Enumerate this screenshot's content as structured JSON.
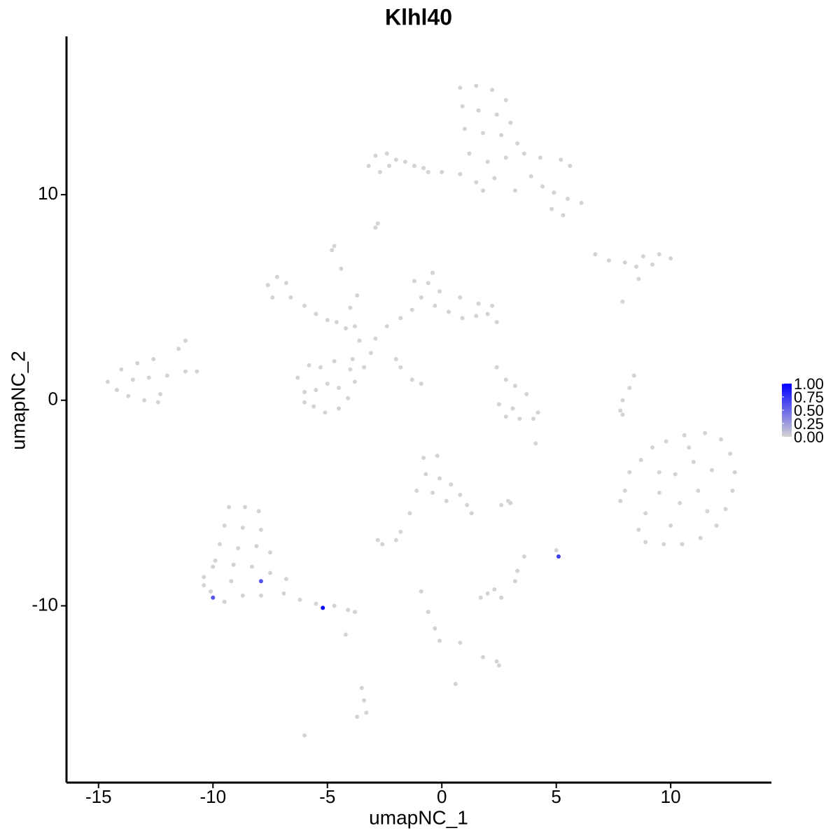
{
  "chart_data": {
    "type": "scatter",
    "title": "Klhl40",
    "xlabel": "umapNC_1",
    "ylabel": "umapNC_2",
    "x": [
      0.8,
      1.5,
      2.2,
      2.8,
      0.9,
      1.6,
      2.4,
      3.0,
      1.0,
      1.8,
      2.6,
      3.3,
      1.2,
      2.0,
      2.8,
      3.6,
      4.3,
      5.2,
      5.6,
      0.8,
      1.5,
      3.9,
      4.4,
      4.9,
      5.5,
      6.1,
      4.8,
      5.3,
      3.2,
      0.0,
      -0.6,
      2.3,
      1.8,
      -3.2,
      -2.9,
      -2.4,
      -2.0,
      -1.6,
      -1.2,
      -0.8,
      -2.7,
      -2.3,
      -2.8,
      -2.9,
      6.7,
      7.3,
      8.0,
      8.8,
      9.5,
      10.0,
      9.2,
      8.5,
      8.6,
      7.9,
      -7.6,
      -7.2,
      -6.8,
      -7.4,
      -6.6,
      -6.0,
      -5.5,
      -5.0,
      -4.6,
      -4.2,
      -4.7,
      -4.8,
      -4.0,
      -3.8,
      -3.6,
      -3.9,
      -3.4,
      -3.1,
      -2.9,
      -2.4,
      -1.8,
      -1.3,
      -0.9,
      -1.2,
      -0.6,
      -0.3,
      0.3,
      0.9,
      1.5,
      2.0,
      2.4,
      2.2,
      1.6,
      0.8,
      -0.4,
      -0.1,
      -2.0,
      -1.3,
      -1.8,
      -0.9,
      -4.4,
      -3.7,
      -6.3,
      -6.0,
      -5.6,
      -5.1,
      -4.5,
      -4.1,
      -3.8,
      -4.0,
      -4.7,
      -5.3,
      -5.8,
      -5.0,
      -4.5,
      -5.5,
      -6.0,
      -14.6,
      -14.2,
      -13.7,
      -13.0,
      -12.3,
      -13.5,
      -12.8,
      -12.0,
      -11.2,
      -10.7,
      -13.3,
      -12.6,
      -11.5,
      -11.2,
      -14.0,
      -12.4,
      2.8,
      3.2,
      3.1,
      2.5,
      2.8,
      3.4,
      4.0,
      4.2,
      3.7,
      2.4,
      8.4,
      8.2,
      7.9,
      7.8,
      7.9,
      8.2,
      8.7,
      9.2,
      9.8,
      10.6,
      11.5,
      12.2,
      12.6,
      12.8,
      12.7,
      12.4,
      12.0,
      11.3,
      10.5,
      9.7,
      8.9,
      8.6,
      8.9,
      9.5,
      10.2,
      11.0,
      11.8,
      11.2,
      10.4,
      11.6,
      10.0,
      9.5,
      8.0,
      7.8,
      10.8,
      -0.8,
      -0.2,
      -0.7,
      -0.1,
      0.4,
      -0.4,
      0.2,
      0.8,
      1.1,
      1.3,
      -1.1,
      -1.4,
      -1.8,
      -2.6,
      -2.0,
      -2.8,
      2.6,
      3.0,
      -9.3,
      -8.6,
      -8.0,
      -9.5,
      -8.7,
      -7.9,
      -9.7,
      -8.9,
      -8.1,
      -7.5,
      -9.9,
      -9.1,
      -8.3,
      -7.5,
      -6.8,
      -10.4,
      -10.1,
      -9.5,
      -8.7,
      -7.9,
      -6.9,
      -6.2,
      -5.5,
      -4.7,
      -4.1,
      -3.8,
      -10.4,
      -9.2,
      -4.2,
      -10.0,
      3.6,
      5.0,
      5.1,
      3.2,
      3.3,
      2.0,
      2.6,
      1.7,
      2.3,
      -0.9,
      -0.6,
      -0.3,
      -0.1,
      0.8,
      1.8,
      2.4,
      2.5,
      -3.5,
      -3.4,
      -3.3,
      -3.7,
      0.6,
      -6.0,
      4.1,
      2.9,
      -10.0,
      -7.9,
      -5.2,
      5.1
    ],
    "y": [
      15.2,
      15.3,
      15.1,
      14.6,
      14.3,
      14.1,
      13.9,
      13.5,
      13.2,
      13.0,
      12.9,
      12.5,
      12.0,
      11.6,
      11.8,
      12.0,
      11.8,
      11.7,
      11.4,
      11.0,
      10.6,
      10.9,
      10.4,
      10.1,
      9.8,
      9.6,
      9.3,
      9.0,
      10.2,
      11.1,
      11.1,
      10.8,
      10.2,
      11.4,
      11.9,
      12.0,
      11.7,
      11.6,
      11.4,
      11.3,
      11.1,
      11.4,
      8.6,
      8.4,
      7.1,
      6.8,
      6.7,
      7.0,
      7.1,
      6.9,
      6.6,
      6.5,
      5.9,
      4.8,
      5.6,
      6.0,
      5.7,
      5.0,
      5.0,
      4.6,
      4.2,
      3.9,
      3.8,
      3.5,
      7.5,
      7.3,
      4.5,
      3.6,
      2.9,
      2.0,
      1.6,
      2.3,
      3.0,
      3.6,
      4.0,
      4.4,
      5.0,
      5.8,
      5.7,
      4.6,
      4.3,
      4.0,
      4.1,
      4.2,
      3.8,
      4.6,
      4.7,
      5.0,
      6.2,
      5.3,
      2.0,
      1.0,
      1.6,
      0.8,
      6.4,
      5.1,
      1.1,
      0.4,
      -0.3,
      -0.6,
      -0.4,
      0.1,
      0.9,
      1.5,
      1.9,
      1.6,
      1.7,
      0.8,
      0.6,
      0.5,
      -0.1,
      0.9,
      0.5,
      0.2,
      0.0,
      0.3,
      1.0,
      1.1,
      1.2,
      1.4,
      1.4,
      1.8,
      2.0,
      2.5,
      2.9,
      1.5,
      -0.1,
      1.0,
      0.7,
      -0.4,
      -0.2,
      -0.8,
      -0.9,
      -0.9,
      -0.6,
      0.3,
      1.6,
      1.2,
      0.6,
      0.0,
      -0.5,
      -0.7,
      -3.5,
      -2.9,
      -2.3,
      -2.0,
      -1.7,
      -1.6,
      -1.9,
      -2.6,
      -3.5,
      -4.4,
      -5.3,
      -6.1,
      -6.7,
      -7.0,
      -7.0,
      -6.9,
      -6.3,
      -5.5,
      -4.5,
      -3.6,
      -3.0,
      -3.4,
      -4.4,
      -5.0,
      -5.4,
      -6.1,
      -3.5,
      -4.4,
      -4.9,
      -2.3,
      -2.8,
      -2.7,
      -3.6,
      -3.8,
      -4.1,
      -4.5,
      -4.9,
      -4.6,
      -5.1,
      -5.5,
      -4.4,
      -5.5,
      -6.4,
      -7.0,
      -6.8,
      -6.8,
      -5.1,
      -5.0,
      -5.2,
      -5.2,
      -5.4,
      -6.1,
      -6.2,
      -6.3,
      -7.0,
      -7.2,
      -7.1,
      -7.4,
      -7.8,
      -8.0,
      -8.1,
      -8.4,
      -8.7,
      -8.6,
      -9.3,
      -9.8,
      -9.5,
      -9.5,
      -9.4,
      -9.7,
      -9.9,
      -10.0,
      -10.2,
      -10.3,
      -9.0,
      -8.8,
      -11.4,
      -8.1,
      -7.6,
      -7.3,
      -7.6,
      -8.8,
      -8.3,
      -9.4,
      -9.6,
      -9.6,
      -9.2,
      -9.3,
      -10.3,
      -11.1,
      -11.7,
      -11.8,
      -12.5,
      -12.7,
      -12.9,
      -14.0,
      -14.6,
      -15.2,
      -15.4,
      -13.8,
      -16.3,
      -2.1,
      -4.9,
      -9.6,
      -8.8,
      -10.1,
      -7.6
    ],
    "values": [
      0,
      0,
      0,
      0,
      0,
      0,
      0,
      0,
      0,
      0,
      0,
      0,
      0,
      0,
      0,
      0,
      0,
      0,
      0,
      0,
      0,
      0,
      0,
      0,
      0,
      0,
      0,
      0,
      0,
      0,
      0,
      0,
      0,
      0,
      0,
      0,
      0,
      0,
      0,
      0,
      0,
      0,
      0,
      0,
      0,
      0,
      0,
      0,
      0,
      0,
      0,
      0,
      0,
      0,
      0,
      0,
      0,
      0,
      0,
      0,
      0,
      0,
      0,
      0,
      0,
      0,
      0,
      0,
      0,
      0,
      0,
      0,
      0,
      0,
      0,
      0,
      0,
      0,
      0,
      0,
      0,
      0,
      0,
      0,
      0,
      0,
      0,
      0,
      0,
      0,
      0,
      0,
      0,
      0,
      0,
      0,
      0,
      0,
      0,
      0,
      0,
      0,
      0,
      0,
      0,
      0,
      0,
      0,
      0,
      0,
      0,
      0,
      0,
      0,
      0,
      0,
      0,
      0,
      0,
      0,
      0,
      0,
      0,
      0,
      0,
      0,
      0,
      0,
      0,
      0,
      0,
      0,
      0,
      0,
      0,
      0,
      0,
      0,
      0,
      0,
      0,
      0,
      0,
      0,
      0,
      0,
      0,
      0,
      0,
      0,
      0,
      0,
      0,
      0,
      0,
      0,
      0,
      0,
      0,
      0,
      0,
      0,
      0,
      0,
      0,
      0,
      0,
      0,
      0,
      0,
      0,
      0,
      0,
      0,
      0,
      0,
      0,
      0,
      0,
      0,
      0,
      0,
      0,
      0,
      0,
      0,
      0,
      0,
      0,
      0,
      0,
      0,
      0,
      0,
      0,
      0,
      0,
      0,
      0,
      0,
      0,
      0,
      0,
      0,
      0,
      0,
      0,
      0,
      0,
      0,
      0,
      0,
      0,
      0,
      0,
      0,
      0,
      0,
      0,
      0,
      0,
      0,
      0,
      0,
      0,
      0,
      0,
      0,
      0,
      0,
      0,
      0,
      0,
      0,
      0,
      0,
      0,
      0,
      0,
      0,
      0,
      0,
      0,
      0,
      0,
      0.6,
      0.6,
      1.0,
      0.7
    ],
    "xlim": [
      -16.4,
      14.4
    ],
    "ylim": [
      -18.6,
      17.7
    ],
    "xticks": [
      -15,
      -10,
      -5,
      0,
      5,
      10
    ],
    "yticks": [
      -10,
      0,
      10
    ],
    "low_color": "#d3d3d3",
    "high_color": "#0000ff",
    "colorbar": {
      "lim": [
        0,
        1
      ],
      "ticks": [
        {
          "value": 0,
          "label": "0.00"
        },
        {
          "value": 0.25,
          "label": "0.25"
        },
        {
          "value": 0.5,
          "label": "0.50"
        },
        {
          "value": 0.75,
          "label": "0.75"
        },
        {
          "value": 1,
          "label": "1.00"
        }
      ]
    }
  }
}
